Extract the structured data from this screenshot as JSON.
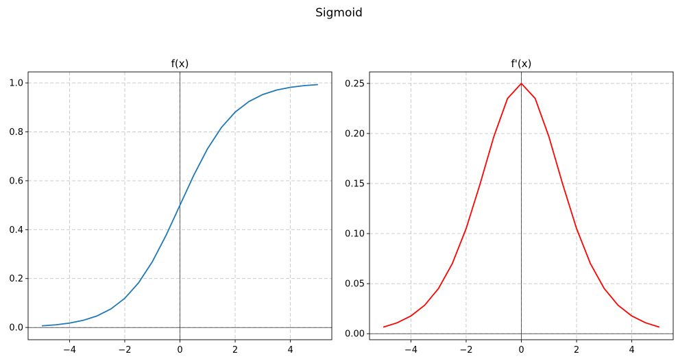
{
  "figure": {
    "title": "Sigmoid"
  },
  "chart_data": [
    {
      "type": "line",
      "title": "f(x)",
      "xlabel": "",
      "ylabel": "",
      "xlim": [
        -5.5,
        5.5
      ],
      "ylim": [
        -0.05,
        1.045
      ],
      "xticks": [
        -4,
        -2,
        0,
        2,
        4
      ],
      "xtick_labels": [
        "−4",
        "−2",
        "0",
        "2",
        "4"
      ],
      "yticks": [
        0.0,
        0.2,
        0.4,
        0.6,
        0.8,
        1.0
      ],
      "ytick_labels": [
        "0.0",
        "0.2",
        "0.4",
        "0.6",
        "0.8",
        "1.0"
      ],
      "grid": true,
      "reference_lines": {
        "x": 0,
        "y": 0
      },
      "series": [
        {
          "color": "#1f77b4",
          "x": [
            -5,
            -4.5,
            -4,
            -3.5,
            -3,
            -2.5,
            -2,
            -1.5,
            -1,
            -0.5,
            0,
            0.5,
            1,
            1.5,
            2,
            2.5,
            3,
            3.5,
            4,
            4.5,
            5
          ],
          "y": [
            0.0067,
            0.011,
            0.018,
            0.0293,
            0.0474,
            0.0759,
            0.1192,
            0.1824,
            0.2689,
            0.3775,
            0.5,
            0.6225,
            0.7311,
            0.8176,
            0.8808,
            0.9241,
            0.9526,
            0.9707,
            0.982,
            0.989,
            0.9933
          ]
        }
      ]
    },
    {
      "type": "line",
      "title": "f'(x)",
      "xlabel": "",
      "ylabel": "",
      "xlim": [
        -5.5,
        5.5
      ],
      "ylim": [
        -0.006,
        0.2615
      ],
      "xticks": [
        -4,
        -2,
        0,
        2,
        4
      ],
      "xtick_labels": [
        "−4",
        "−2",
        "0",
        "2",
        "4"
      ],
      "yticks": [
        0.0,
        0.05,
        0.1,
        0.15,
        0.2,
        0.25
      ],
      "ytick_labels": [
        "0.00",
        "0.05",
        "0.10",
        "0.15",
        "0.20",
        "0.25"
      ],
      "grid": true,
      "reference_lines": {
        "x": 0,
        "y": 0
      },
      "series": [
        {
          "color": "#ff0000",
          "x": [
            -5,
            -4.5,
            -4,
            -3.5,
            -3,
            -2.5,
            -2,
            -1.5,
            -1,
            -0.5,
            0,
            0.5,
            1,
            1.5,
            2,
            2.5,
            3,
            3.5,
            4,
            4.5,
            5
          ],
          "y": [
            0.0066,
            0.0109,
            0.0177,
            0.0285,
            0.0452,
            0.0701,
            0.105,
            0.1491,
            0.1966,
            0.235,
            0.25,
            0.235,
            0.1966,
            0.1491,
            0.105,
            0.0701,
            0.0452,
            0.0285,
            0.0177,
            0.0109,
            0.0066
          ]
        }
      ]
    }
  ]
}
